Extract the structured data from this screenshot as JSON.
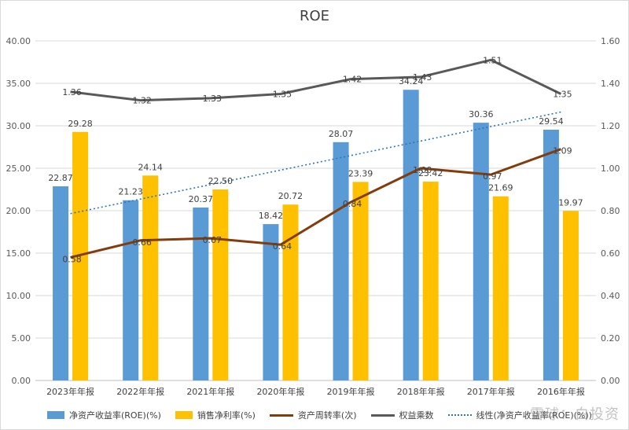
{
  "chart_data": {
    "type": "bar",
    "title": "ROE",
    "categories": [
      "2023年年报",
      "2022年年报",
      "2021年年报",
      "2020年年报",
      "2019年年报",
      "2018年年报",
      "2017年年报",
      "2016年年报"
    ],
    "y_left": {
      "min": 0,
      "max": 40,
      "ticks": [
        "0.00",
        "5.00",
        "10.00",
        "15.00",
        "20.00",
        "25.00",
        "30.00",
        "35.00",
        "40.00"
      ]
    },
    "y_right": {
      "min": 0,
      "max": 1.6,
      "ticks": [
        "0.00",
        "0.20",
        "0.40",
        "0.60",
        "0.80",
        "1.00",
        "1.20",
        "1.40",
        "1.60"
      ]
    },
    "grid": true,
    "legend_position": "bottom",
    "series": [
      {
        "name": "净资产收益率(ROE)(%)",
        "kind": "bar",
        "axis": "left",
        "color": "#5b9bd5",
        "values": [
          22.87,
          21.23,
          20.37,
          18.42,
          28.07,
          34.24,
          30.36,
          29.54
        ],
        "labels": [
          "22.87",
          "21.23",
          "20.37",
          "18.42",
          "28.07",
          "34.24",
          "30.36",
          "29.54"
        ]
      },
      {
        "name": "销售净利率(%)",
        "kind": "bar",
        "axis": "left",
        "color": "#ffc000",
        "values": [
          29.28,
          24.14,
          22.5,
          20.72,
          23.39,
          23.42,
          21.69,
          19.97
        ],
        "labels": [
          "29.28",
          "24.14",
          "22.50",
          "20.72",
          "23.39",
          "23.42",
          "21.69",
          "19.97"
        ]
      },
      {
        "name": "资产周转率(次)",
        "kind": "line",
        "axis": "right",
        "color": "#843c0c",
        "values": [
          0.58,
          0.66,
          0.67,
          0.64,
          0.84,
          1.0,
          0.97,
          1.09
        ],
        "labels": [
          "0.58",
          "0.66",
          "0.67",
          "0.64",
          "0.84",
          "1.00",
          "0.97",
          "1.09"
        ]
      },
      {
        "name": "权益乘数",
        "kind": "line",
        "axis": "right",
        "color": "#595959",
        "values": [
          1.36,
          1.32,
          1.33,
          1.35,
          1.42,
          1.43,
          1.51,
          1.35
        ],
        "labels": [
          "1.36",
          "1.32",
          "1.33",
          "1.35",
          "1.42",
          "1.43",
          "1.51",
          "1.35"
        ]
      }
    ],
    "trendline": {
      "name": "线性(净资产收益率(ROE)(%))",
      "kind": "linear",
      "of_series": 0,
      "axis": "left",
      "color": "#2e75b6"
    }
  },
  "watermark": "雪球：白投资"
}
